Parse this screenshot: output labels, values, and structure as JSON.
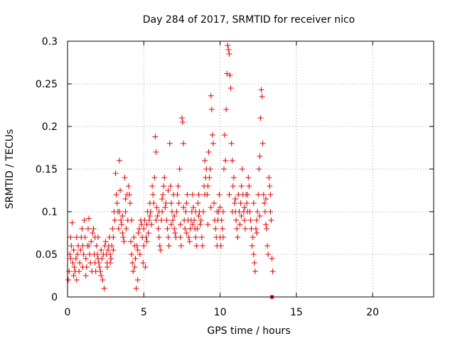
{
  "chart_data": {
    "type": "scatter",
    "title": "Day 284 of 2017, SRMTID for receiver nico",
    "xlabel": "GPS time / hours",
    "ylabel": "SRMTID / TECUs",
    "xlim": [
      0,
      24
    ],
    "ylim": [
      0,
      0.3
    ],
    "xticks": [
      0,
      5,
      10,
      15,
      20
    ],
    "yticks": [
      0,
      0.05,
      0.1,
      0.15,
      0.2,
      0.25,
      0.3
    ],
    "xtick_labels": [
      "0",
      "5",
      "10",
      "15",
      "20"
    ],
    "ytick_labels": [
      "0",
      "0.05",
      "0.1",
      "0.15",
      "0.2",
      "0.25",
      "0.3"
    ],
    "grid": true,
    "marker": "+",
    "color": "#e00000",
    "series": [
      {
        "name": "SRMTID",
        "points": [
          [
            0.05,
            0.02
          ],
          [
            0.1,
            0.03
          ],
          [
            0.15,
            0.05
          ],
          [
            0.2,
            0.07
          ],
          [
            0.25,
            0.06
          ],
          [
            0.3,
            0.087
          ],
          [
            0.35,
            0.04
          ],
          [
            0.4,
            0.025
          ],
          [
            0.45,
            0.035
          ],
          [
            0.5,
            0.03
          ],
          [
            0.55,
            0.045
          ],
          [
            0.6,
            0.02
          ],
          [
            0.65,
            0.05
          ],
          [
            0.7,
            0.06
          ],
          [
            0.75,
            0.03
          ],
          [
            0.8,
            0.04
          ],
          [
            0.85,
            0.055
          ],
          [
            0.9,
            0.07
          ],
          [
            0.95,
            0.08
          ],
          [
            1.0,
            0.06
          ],
          [
            1.05,
            0.05
          ],
          [
            1.1,
            0.09
          ],
          [
            1.15,
            0.07
          ],
          [
            1.2,
            0.045
          ],
          [
            1.25,
            0.035
          ],
          [
            1.3,
            0.06
          ],
          [
            1.35,
            0.08
          ],
          [
            1.4,
            0.092
          ],
          [
            1.45,
            0.05
          ],
          [
            1.5,
            0.04
          ],
          [
            1.55,
            0.065
          ],
          [
            1.6,
            0.03
          ],
          [
            1.65,
            0.075
          ],
          [
            1.7,
            0.08
          ],
          [
            1.75,
            0.05
          ],
          [
            1.8,
            0.04
          ],
          [
            1.85,
            0.03
          ],
          [
            1.9,
            0.06
          ],
          [
            1.95,
            0.05
          ],
          [
            2.0,
            0.07
          ],
          [
            2.05,
            0.04
          ],
          [
            2.1,
            0.035
          ],
          [
            2.15,
            0.03
          ],
          [
            2.2,
            0.025
          ],
          [
            2.25,
            0.045
          ],
          [
            2.3,
            0.02
          ],
          [
            2.35,
            0.05
          ],
          [
            2.4,
            0.01
          ],
          [
            2.45,
            0.06
          ],
          [
            2.5,
            0.065
          ],
          [
            2.55,
            0.05
          ],
          [
            2.6,
            0.04
          ],
          [
            2.65,
            0.055
          ],
          [
            2.7,
            0.06
          ],
          [
            2.75,
            0.07
          ],
          [
            2.8,
            0.05
          ],
          [
            2.85,
            0.045
          ],
          [
            2.9,
            0.06
          ],
          [
            2.95,
            0.08
          ],
          [
            3.0,
            0.07
          ],
          [
            3.05,
            0.1
          ],
          [
            3.1,
            0.09
          ],
          [
            3.15,
            0.145
          ],
          [
            3.2,
            0.12
          ],
          [
            3.25,
            0.11
          ],
          [
            3.3,
            0.1
          ],
          [
            3.35,
            0.08
          ],
          [
            3.4,
            0.16
          ],
          [
            3.45,
            0.125
          ],
          [
            3.5,
            0.09
          ],
          [
            3.55,
            0.085
          ],
          [
            3.6,
            0.095
          ],
          [
            3.65,
            0.07
          ],
          [
            3.7,
            0.065
          ],
          [
            3.75,
            0.14
          ],
          [
            3.8,
            0.1
          ],
          [
            3.85,
            0.08
          ],
          [
            3.9,
            0.12
          ],
          [
            3.95,
            0.09
          ],
          [
            4.0,
            0.13
          ],
          [
            4.05,
            0.12
          ],
          [
            4.1,
            0.11
          ],
          [
            4.15,
            0.065
          ],
          [
            4.2,
            0.05
          ],
          [
            4.25,
            0.04
          ],
          [
            4.3,
            0.03
          ],
          [
            4.35,
            0.07
          ],
          [
            4.4,
            0.06
          ],
          [
            4.45,
            0.045
          ],
          [
            4.5,
            0.01
          ],
          [
            4.55,
            0.06
          ],
          [
            4.6,
            0.02
          ],
          [
            4.65,
            0.075
          ],
          [
            4.7,
            0.08
          ],
          [
            4.75,
            0.05
          ],
          [
            4.8,
            0.09
          ],
          [
            4.85,
            0.085
          ],
          [
            4.9,
            0.07
          ],
          [
            4.95,
            0.04
          ],
          [
            5.0,
            0.06
          ],
          [
            5.05,
            0.09
          ],
          [
            5.1,
            0.035
          ],
          [
            5.15,
            0.07
          ],
          [
            5.2,
            0.085
          ],
          [
            5.25,
            0.1
          ],
          [
            5.3,
            0.075
          ],
          [
            5.35,
            0.09
          ],
          [
            5.4,
            0.11
          ],
          [
            5.45,
            0.1
          ],
          [
            5.5,
            0.085
          ],
          [
            5.55,
            0.13
          ],
          [
            5.6,
            0.12
          ],
          [
            5.65,
            0.11
          ],
          [
            5.7,
            0.14
          ],
          [
            5.75,
            0.188
          ],
          [
            5.8,
            0.17
          ],
          [
            5.85,
            0.105
          ],
          [
            5.9,
            0.095
          ],
          [
            5.95,
            0.08
          ],
          [
            6.0,
            0.07
          ],
          [
            6.05,
            0.06
          ],
          [
            6.1,
            0.055
          ],
          [
            6.15,
            0.09
          ],
          [
            6.2,
            0.1
          ],
          [
            6.25,
            0.12
          ],
          [
            6.3,
            0.13
          ],
          [
            6.35,
            0.14
          ],
          [
            6.4,
            0.105
          ],
          [
            6.45,
            0.11
          ],
          [
            6.5,
            0.09
          ],
          [
            6.55,
            0.08
          ],
          [
            6.6,
            0.07
          ],
          [
            6.65,
            0.06
          ],
          [
            6.7,
            0.18
          ],
          [
            6.75,
            0.13
          ],
          [
            6.8,
            0.11
          ],
          [
            6.85,
            0.1
          ],
          [
            6.9,
            0.09
          ],
          [
            6.95,
            0.12
          ],
          [
            7.0,
            0.08
          ],
          [
            7.05,
            0.075
          ],
          [
            7.1,
            0.07
          ],
          [
            7.15,
            0.1
          ],
          [
            7.2,
            0.12
          ],
          [
            7.25,
            0.13
          ],
          [
            7.3,
            0.11
          ],
          [
            7.35,
            0.15
          ],
          [
            7.4,
            0.07
          ],
          [
            7.45,
            0.06
          ],
          [
            7.5,
            0.21
          ],
          [
            7.55,
            0.205
          ],
          [
            7.6,
            0.18
          ],
          [
            7.65,
            0.09
          ],
          [
            7.7,
            0.08
          ],
          [
            7.75,
            0.1
          ],
          [
            7.8,
            0.11
          ],
          [
            7.85,
            0.12
          ],
          [
            7.9,
            0.09
          ],
          [
            7.95,
            0.07
          ],
          [
            8.0,
            0.065
          ],
          [
            8.05,
            0.08
          ],
          [
            8.1,
            0.09
          ],
          [
            8.15,
            0.1
          ],
          [
            8.2,
            0.12
          ],
          [
            8.25,
            0.105
          ],
          [
            8.3,
            0.09
          ],
          [
            8.35,
            0.08
          ],
          [
            8.4,
            0.07
          ],
          [
            8.45,
            0.06
          ],
          [
            8.5,
            0.08
          ],
          [
            8.55,
            0.11
          ],
          [
            8.6,
            0.12
          ],
          [
            8.65,
            0.1
          ],
          [
            8.7,
            0.085
          ],
          [
            8.75,
            0.09
          ],
          [
            8.8,
            0.07
          ],
          [
            8.85,
            0.06
          ],
          [
            8.9,
            0.1
          ],
          [
            8.95,
            0.13
          ],
          [
            9.0,
            0.16
          ],
          [
            9.05,
            0.14
          ],
          [
            9.1,
            0.15
          ],
          [
            9.15,
            0.12
          ],
          [
            9.2,
            0.13
          ],
          [
            9.25,
            0.17
          ],
          [
            9.3,
            0.14
          ],
          [
            9.35,
            0.15
          ],
          [
            9.4,
            0.236
          ],
          [
            9.45,
            0.22
          ],
          [
            9.5,
            0.19
          ],
          [
            9.55,
            0.18
          ],
          [
            9.6,
            0.11
          ],
          [
            9.65,
            0.09
          ],
          [
            9.7,
            0.08
          ],
          [
            9.75,
            0.07
          ],
          [
            9.8,
            0.06
          ],
          [
            9.85,
            0.09
          ],
          [
            9.9,
            0.1
          ],
          [
            9.95,
            0.12
          ],
          [
            10.0,
            0.07
          ],
          [
            10.05,
            0.06
          ],
          [
            10.1,
            0.09
          ],
          [
            10.15,
            0.08
          ],
          [
            10.2,
            0.1
          ],
          [
            10.25,
            0.15
          ],
          [
            10.3,
            0.19
          ],
          [
            10.35,
            0.16
          ],
          [
            10.4,
            0.22
          ],
          [
            10.45,
            0.262
          ],
          [
            10.5,
            0.295
          ],
          [
            10.55,
            0.29
          ],
          [
            10.6,
            0.285
          ],
          [
            10.65,
            0.26
          ],
          [
            10.7,
            0.245
          ],
          [
            10.75,
            0.18
          ],
          [
            10.8,
            0.16
          ],
          [
            10.85,
            0.13
          ],
          [
            10.9,
            0.14
          ],
          [
            10.95,
            0.11
          ],
          [
            11.0,
            0.1
          ],
          [
            11.05,
            0.09
          ],
          [
            11.1,
            0.08
          ],
          [
            11.15,
            0.07
          ],
          [
            11.2,
            0.12
          ],
          [
            11.25,
            0.1
          ],
          [
            11.3,
            0.085
          ],
          [
            11.35,
            0.11
          ],
          [
            11.4,
            0.13
          ],
          [
            11.45,
            0.15
          ],
          [
            11.5,
            0.12
          ],
          [
            11.55,
            0.1
          ],
          [
            11.6,
            0.09
          ],
          [
            11.65,
            0.08
          ],
          [
            11.7,
            0.12
          ],
          [
            11.75,
            0.11
          ],
          [
            11.8,
            0.1
          ],
          [
            11.85,
            0.14
          ],
          [
            11.9,
            0.13
          ],
          [
            11.95,
            0.1
          ],
          [
            12.0,
            0.09
          ],
          [
            12.05,
            0.08
          ],
          [
            12.1,
            0.06
          ],
          [
            12.15,
            0.07
          ],
          [
            12.2,
            0.05
          ],
          [
            12.25,
            0.04
          ],
          [
            12.3,
            0.03
          ],
          [
            12.35,
            0.08
          ],
          [
            12.4,
            0.09
          ],
          [
            12.45,
            0.1
          ],
          [
            12.5,
            0.12
          ],
          [
            12.55,
            0.15
          ],
          [
            12.6,
            0.165
          ],
          [
            12.65,
            0.21
          ],
          [
            12.7,
            0.243
          ],
          [
            12.75,
            0.235
          ],
          [
            12.8,
            0.18
          ],
          [
            12.85,
            0.12
          ],
          [
            12.9,
            0.11
          ],
          [
            12.95,
            0.1
          ],
          [
            13.0,
            0.085
          ],
          [
            13.05,
            0.08
          ],
          [
            13.1,
            0.06
          ],
          [
            13.15,
            0.05
          ],
          [
            13.2,
            0.14
          ],
          [
            13.25,
            0.13
          ],
          [
            13.3,
            0.12
          ],
          [
            13.35,
            0.09
          ],
          [
            13.4,
            0.045
          ],
          [
            13.45,
            0.03
          ],
          [
            0.2,
            0.045
          ],
          [
            0.6,
            0.07
          ],
          [
            1.0,
            0.035
          ],
          [
            1.4,
            0.06
          ],
          [
            1.8,
            0.07
          ],
          [
            2.2,
            0.055
          ],
          [
            2.6,
            0.035
          ],
          [
            3.0,
            0.055
          ],
          [
            3.4,
            0.1
          ],
          [
            3.8,
            0.115
          ],
          [
            4.2,
            0.09
          ],
          [
            4.6,
            0.055
          ],
          [
            5.0,
            0.08
          ],
          [
            5.4,
            0.095
          ],
          [
            5.8,
            0.09
          ],
          [
            6.2,
            0.115
          ],
          [
            6.6,
            0.125
          ],
          [
            7.0,
            0.095
          ],
          [
            7.4,
            0.085
          ],
          [
            7.8,
            0.075
          ],
          [
            8.2,
            0.085
          ],
          [
            8.6,
            0.095
          ],
          [
            9.0,
            0.12
          ],
          [
            9.4,
            0.105
          ],
          [
            9.8,
            0.1
          ],
          [
            10.2,
            0.07
          ],
          [
            10.6,
            0.12
          ],
          [
            11.0,
            0.115
          ],
          [
            11.4,
            0.095
          ],
          [
            11.8,
            0.12
          ],
          [
            12.2,
            0.11
          ],
          [
            12.6,
            0.095
          ],
          [
            13.0,
            0.115
          ],
          [
            13.3,
            0.1
          ],
          [
            0.4,
            0.055
          ],
          [
            1.2,
            0.025
          ],
          [
            2.0,
            0.045
          ],
          [
            2.8,
            0.04
          ],
          [
            3.6,
            0.075
          ],
          [
            4.4,
            0.035
          ],
          [
            5.2,
            0.065
          ],
          [
            6.0,
            0.1
          ],
          [
            6.8,
            0.085
          ],
          [
            7.6,
            0.105
          ],
          [
            8.4,
            0.1
          ],
          [
            9.2,
            0.085
          ],
          [
            10.0,
            0.105
          ],
          [
            10.8,
            0.1
          ],
          [
            11.6,
            0.105
          ],
          [
            12.4,
            0.075
          ]
        ]
      }
    ],
    "outlier_marker": {
      "x": 13.4,
      "y": 0.0
    }
  }
}
